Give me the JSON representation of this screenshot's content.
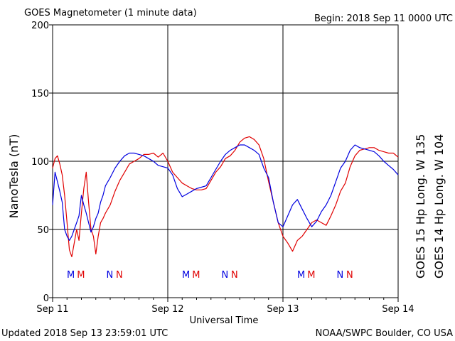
{
  "header": {
    "title": "GOES Magnetometer (1 minute data)",
    "begin": "Begin:  2018 Sep 11 0000 UTC"
  },
  "footer": {
    "updated": "Updated 2018 Sep 13 23:59:01 UTC",
    "source": "NOAA/SWPC Boulder, CO USA"
  },
  "colors": {
    "goes15": "#e00000",
    "goes14": "#0000e0",
    "axis": "#000000"
  },
  "chart_data": {
    "type": "line",
    "xlabel": "Universal Time",
    "ylabel": "NanoTesla (nT)",
    "ylim": [
      0,
      200
    ],
    "xlim": [
      0,
      72
    ],
    "x_unit": "hours since 2018 Sep 11 0000 UTC",
    "y_ticks": [
      0,
      50,
      100,
      150,
      200
    ],
    "x_ticks": [
      {
        "x": 0,
        "label": "Sep 11"
      },
      {
        "x": 24,
        "label": "Sep 12"
      },
      {
        "x": 48,
        "label": "Sep 13"
      },
      {
        "x": 72,
        "label": "Sep 14"
      }
    ],
    "grid": true,
    "series": [
      {
        "name": "GOES 15 Hp  Long. W 135",
        "color": "#e00000",
        "x": [
          0,
          0.5,
          1,
          1.5,
          2,
          2.5,
          3,
          3.5,
          4,
          4.5,
          5,
          5.5,
          6,
          6.5,
          7,
          7.5,
          8,
          8.5,
          9,
          9.5,
          10,
          10.5,
          11,
          12,
          13,
          14,
          15,
          16,
          17,
          18,
          19,
          20,
          21,
          22,
          23,
          24,
          25,
          26,
          27,
          28,
          29,
          30,
          31,
          32,
          33,
          34,
          35,
          36,
          37,
          38,
          39,
          40,
          41,
          42,
          43,
          44,
          45,
          46,
          47,
          48,
          49,
          50,
          51,
          52,
          53,
          54,
          55,
          56,
          57,
          58,
          59,
          60,
          61,
          62,
          63,
          64,
          65,
          66,
          67,
          68,
          69,
          70,
          71,
          72
        ],
        "y": [
          95,
          102,
          104,
          98,
          90,
          75,
          55,
          35,
          30,
          40,
          50,
          42,
          62,
          80,
          92,
          70,
          50,
          45,
          32,
          45,
          55,
          58,
          62,
          68,
          78,
          86,
          92,
          98,
          100,
          102,
          105,
          105,
          106,
          103,
          106,
          100,
          92,
          88,
          84,
          82,
          80,
          79,
          79,
          80,
          86,
          92,
          96,
          102,
          104,
          108,
          114,
          117,
          118,
          116,
          112,
          102,
          85,
          70,
          55,
          45,
          40,
          34,
          42,
          45,
          50,
          55,
          57,
          55,
          53,
          60,
          68,
          78,
          84,
          96,
          104,
          108,
          109,
          110,
          110,
          108,
          107,
          106,
          106,
          103
        ]
      },
      {
        "name": "GOES 14 Hp  Long. W 104",
        "color": "#0000e0",
        "x": [
          0,
          0.5,
          1,
          1.5,
          2,
          2.5,
          3,
          3.5,
          4,
          4.5,
          5,
          5.5,
          6,
          6.5,
          7,
          7.5,
          8,
          8.5,
          9,
          9.5,
          10,
          10.5,
          11,
          12,
          13,
          14,
          15,
          16,
          17,
          18,
          19,
          20,
          21,
          22,
          23,
          24,
          25,
          26,
          27,
          28,
          29,
          30,
          31,
          32,
          33,
          34,
          35,
          36,
          37,
          38,
          39,
          40,
          41,
          42,
          43,
          44,
          45,
          46,
          47,
          48,
          49,
          50,
          51,
          52,
          53,
          54,
          55,
          56,
          57,
          58,
          59,
          60,
          61,
          62,
          63,
          64,
          65,
          66,
          67,
          68,
          69,
          70,
          71,
          72
        ],
        "y": [
          68,
          92,
          85,
          78,
          70,
          50,
          45,
          42,
          45,
          50,
          55,
          60,
          75,
          68,
          62,
          55,
          48,
          52,
          58,
          62,
          70,
          75,
          82,
          88,
          95,
          100,
          104,
          106,
          106,
          105,
          104,
          102,
          100,
          97,
          96,
          95,
          90,
          80,
          74,
          76,
          78,
          80,
          81,
          82,
          88,
          94,
          100,
          105,
          108,
          110,
          112,
          112,
          110,
          108,
          105,
          95,
          88,
          70,
          55,
          52,
          60,
          68,
          72,
          65,
          58,
          52,
          56,
          63,
          68,
          75,
          85,
          95,
          100,
          108,
          112,
          110,
          109,
          108,
          107,
          104,
          100,
          97,
          94,
          90
        ]
      }
    ],
    "markers": [
      {
        "x": 3.8,
        "label": "M",
        "color": "#0000e0"
      },
      {
        "x": 5.9,
        "label": "M",
        "color": "#e00000"
      },
      {
        "x": 11.9,
        "label": "N",
        "color": "#0000e0"
      },
      {
        "x": 13.9,
        "label": "N",
        "color": "#e00000"
      },
      {
        "x": 27.8,
        "label": "M",
        "color": "#0000e0"
      },
      {
        "x": 29.9,
        "label": "M",
        "color": "#e00000"
      },
      {
        "x": 35.9,
        "label": "N",
        "color": "#0000e0"
      },
      {
        "x": 37.9,
        "label": "N",
        "color": "#e00000"
      },
      {
        "x": 51.8,
        "label": "M",
        "color": "#0000e0"
      },
      {
        "x": 53.9,
        "label": "M",
        "color": "#e00000"
      },
      {
        "x": 59.9,
        "label": "N",
        "color": "#0000e0"
      },
      {
        "x": 61.9,
        "label": "N",
        "color": "#e00000"
      }
    ]
  }
}
